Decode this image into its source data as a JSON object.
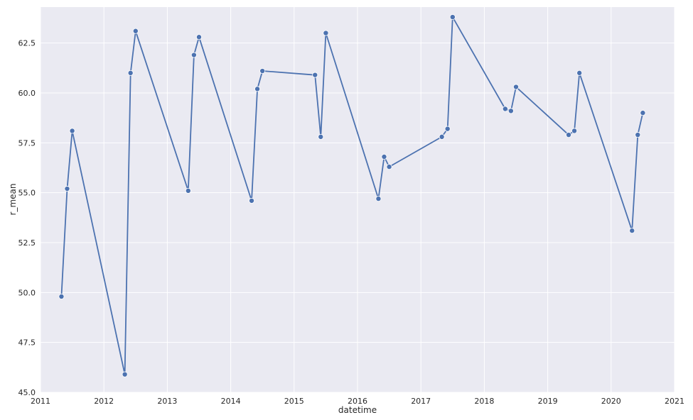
{
  "chart_data": {
    "type": "line",
    "title": "",
    "xlabel": "datetime",
    "ylabel": "r_mean",
    "xlim": [
      2011,
      2021
    ],
    "ylim": [
      45.0,
      64.3
    ],
    "x_ticks": [
      "2011",
      "2012",
      "2013",
      "2014",
      "2015",
      "2016",
      "2017",
      "2018",
      "2019",
      "2020",
      "2021"
    ],
    "y_ticks": [
      "45.0",
      "47.5",
      "50.0",
      "52.5",
      "55.0",
      "57.5",
      "60.0",
      "62.5"
    ],
    "grid": true,
    "colors": {
      "background": "#eaeaf2",
      "grid": "#ffffff",
      "line": "#4c72b0"
    },
    "series": [
      {
        "x": [
          2011.33,
          2011.42,
          2011.5,
          2012.33,
          2012.42,
          2012.5,
          2013.33,
          2013.42,
          2013.5,
          2014.33,
          2014.42,
          2014.5,
          2015.33,
          2015.42,
          2015.5,
          2016.33,
          2016.42,
          2016.5,
          2017.33,
          2017.42,
          2017.5,
          2018.33,
          2018.42,
          2018.5,
          2019.33,
          2019.42,
          2019.5,
          2020.33,
          2020.42,
          2020.5
        ],
        "values": [
          49.8,
          55.2,
          58.1,
          45.9,
          61.0,
          63.1,
          55.1,
          61.9,
          62.8,
          54.6,
          60.2,
          61.1,
          60.9,
          57.8,
          63.0,
          54.7,
          56.8,
          56.3,
          57.8,
          58.2,
          63.8,
          59.2,
          59.1,
          60.3,
          57.9,
          58.1,
          61.0,
          53.1,
          57.9,
          59.0
        ]
      }
    ]
  }
}
